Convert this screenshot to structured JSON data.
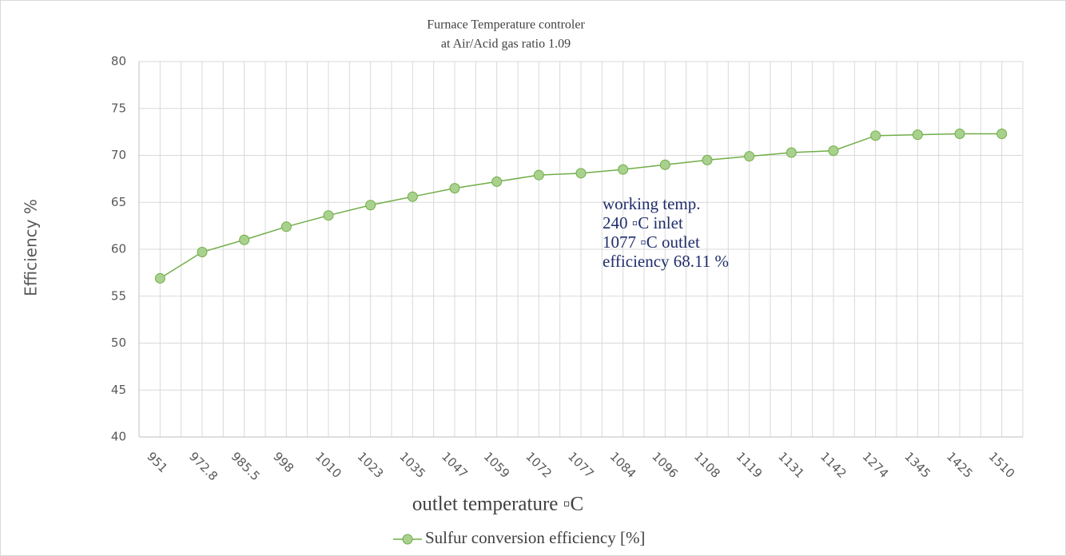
{
  "chart_data": {
    "type": "line",
    "title": "Furnace Temperature controler",
    "subtitle": "at Air/Acid gas ratio  1.09",
    "x_label": "outlet temperature  ▫C",
    "y_label": "Efficiency %",
    "categories": [
      "951",
      "972.8",
      "985.5",
      "998",
      "1010",
      "1023",
      "1035",
      "1047",
      "1059",
      "1072",
      "1077",
      "1084",
      "1096",
      "1108",
      "1119",
      "1131",
      "1142",
      "1274",
      "1345",
      "1425",
      "1510"
    ],
    "series": [
      {
        "name": "Sulfur conversion efficiency [%]",
        "color": "#70ad47",
        "values": [
          56.9,
          59.7,
          61.0,
          62.4,
          63.6,
          64.7,
          65.6,
          66.5,
          67.2,
          67.9,
          68.1,
          68.5,
          69.0,
          69.5,
          69.9,
          70.3,
          70.5,
          72.1,
          72.2,
          72.3,
          72.3
        ]
      }
    ],
    "ylim": [
      40,
      80
    ],
    "yticks": [
      40,
      45,
      50,
      55,
      60,
      65,
      70,
      75,
      80
    ],
    "grid": true,
    "legend": "bottom",
    "annotation": [
      "working temp.",
      "240 ▫C    inlet",
      "1077 ▫C  outlet",
      "efficiency  68.11 %"
    ]
  }
}
